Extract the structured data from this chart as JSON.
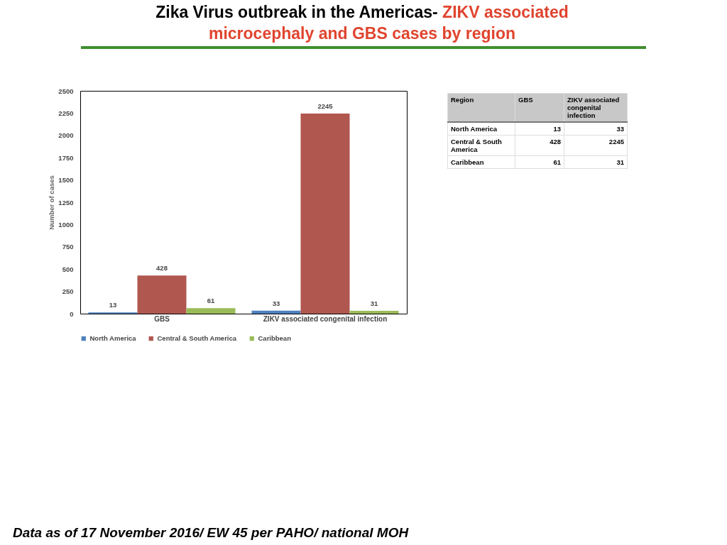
{
  "chart_data": {
    "type": "bar",
    "title": "Zika Virus outbreak in the Americas-",
    "subtitle": "ZIKV associated microcephaly and GBS cases by region",
    "ylabel": "Number of cases",
    "categories": [
      "GBS",
      "ZIKV associated congenital infection"
    ],
    "series": [
      {
        "name": "North America",
        "color": "#4f81bd",
        "values": [
          13,
          33
        ]
      },
      {
        "name": "Central & South America",
        "color": "#b0574f",
        "values": [
          428,
          2245
        ]
      },
      {
        "name": "Caribbean",
        "color": "#9bbb59",
        "values": [
          61,
          31
        ]
      }
    ],
    "ylim": [
      0,
      2500
    ],
    "yticks": [
      0,
      250,
      500,
      750,
      1000,
      1250,
      1500,
      1750,
      2000,
      2250,
      2500
    ],
    "grid": false,
    "legend": "bottom",
    "data_labels": true,
    "annotations": [
      "Data as of 17 November 2016/ EW 45 per PAHO/ national MOH",
      "Region",
      "13",
      "33",
      "428",
      "2245",
      "61",
      "31"
    ]
  }
}
